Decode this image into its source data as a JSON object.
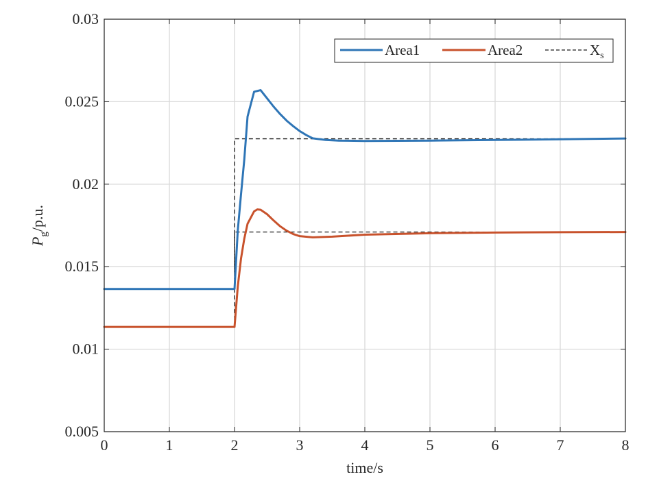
{
  "chart_data": {
    "type": "line",
    "title": "",
    "xlabel": "time/s",
    "ylabel": {
      "main": "P",
      "sub": "g",
      "unit": "/p.u."
    },
    "xlim": [
      0,
      8
    ],
    "ylim": [
      0.005,
      0.03
    ],
    "xticks": [
      0,
      1,
      2,
      3,
      4,
      5,
      6,
      7,
      8
    ],
    "xtick_labels": [
      "0",
      "1",
      "2",
      "3",
      "4",
      "5",
      "6",
      "7",
      "8"
    ],
    "yticks": [
      0.005,
      0.01,
      0.015,
      0.02,
      0.025,
      0.03
    ],
    "ytick_labels": [
      "0.005",
      "0.01",
      "0.015",
      "0.02",
      "0.025",
      "0.03"
    ],
    "grid": true,
    "legend_position": "top-right",
    "series": [
      {
        "name": "Area1",
        "color": "#2e75b6",
        "style": "solid",
        "x": [
          0,
          2.0,
          2.05,
          2.1,
          2.15,
          2.2,
          2.3,
          2.4,
          2.5,
          2.6,
          2.7,
          2.8,
          2.9,
          3.0,
          3.1,
          3.2,
          3.4,
          3.6,
          4.0,
          5.0,
          6.0,
          7.0,
          8.0
        ],
        "y": [
          0.01365,
          0.01365,
          0.0172,
          0.0194,
          0.0215,
          0.0241,
          0.0256,
          0.0257,
          0.0252,
          0.0247,
          0.02425,
          0.02385,
          0.02352,
          0.02322,
          0.02298,
          0.02278,
          0.02268,
          0.02264,
          0.02262,
          0.02264,
          0.02268,
          0.02272,
          0.02277
        ]
      },
      {
        "name": "Area2",
        "color": "#c8522c",
        "style": "solid",
        "x": [
          0,
          2.0,
          2.05,
          2.1,
          2.15,
          2.2,
          2.3,
          2.35,
          2.4,
          2.5,
          2.6,
          2.7,
          2.8,
          2.9,
          3.0,
          3.2,
          3.5,
          4.0,
          5.0,
          6.0,
          7.0,
          8.0
        ],
        "y": [
          0.01135,
          0.01135,
          0.0138,
          0.0155,
          0.0167,
          0.0176,
          0.01835,
          0.01847,
          0.01845,
          0.01818,
          0.0178,
          0.01745,
          0.01718,
          0.01698,
          0.01685,
          0.01678,
          0.01682,
          0.01694,
          0.01703,
          0.01707,
          0.01709,
          0.0171
        ]
      },
      {
        "name": "X",
        "name_sub": "s",
        "color": "#1a1a1a",
        "style": "dashed",
        "segments": [
          {
            "x": [
              0,
              2.0,
              2.0,
              8.0
            ],
            "y": [
              0.01365,
              0.01365,
              0.02275,
              0.02275
            ]
          },
          {
            "x": [
              0,
              2.0,
              2.0,
              8.0
            ],
            "y": [
              0.01135,
              0.01135,
              0.0171,
              0.0171
            ]
          }
        ]
      }
    ]
  }
}
